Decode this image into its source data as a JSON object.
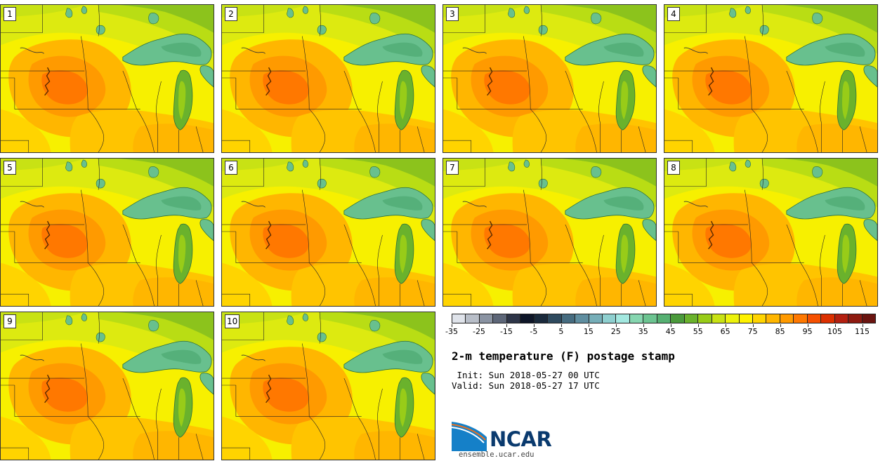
{
  "panels": [
    {
      "label": "1"
    },
    {
      "label": "2"
    },
    {
      "label": "3"
    },
    {
      "label": "4"
    },
    {
      "label": "5"
    },
    {
      "label": "6"
    },
    {
      "label": "7"
    },
    {
      "label": "8"
    },
    {
      "label": "9"
    },
    {
      "label": "10"
    }
  ],
  "colorbar": {
    "colors": [
      "#dfe3ea",
      "#b8bec8",
      "#8a93a2",
      "#5d6678",
      "#2e3548",
      "#0e1628",
      "#1a2a3c",
      "#2e4a5e",
      "#466c80",
      "#5f8ea0",
      "#76aeb8",
      "#8ecfcf",
      "#a3e8e0",
      "#86d6b0",
      "#6cc491",
      "#56b072",
      "#4b9a3c",
      "#6ab22c",
      "#98cc18",
      "#c8e214",
      "#ecf20c",
      "#fff200",
      "#ffd400",
      "#ffb600",
      "#ff9a00",
      "#ff7800",
      "#f65000",
      "#dc3000",
      "#b42010",
      "#8e1a10",
      "#6a1410"
    ],
    "tick_labels": [
      "-35",
      "-25",
      "-15",
      "-5",
      "5",
      "15",
      "25",
      "35",
      "45",
      "55",
      "65",
      "75",
      "85",
      "95",
      "105",
      "115"
    ]
  },
  "title": "2-m temperature (F) postage stamp",
  "init_line": " Init: Sun 2018-05-27 00 UTC",
  "valid_line": "Valid: Sun 2018-05-27 17 UTC",
  "logo": {
    "text": "NCAR",
    "url": "ensemble.ucar.edu",
    "primary_color": "#0a3a6e",
    "accent_color": "#1580c8"
  }
}
